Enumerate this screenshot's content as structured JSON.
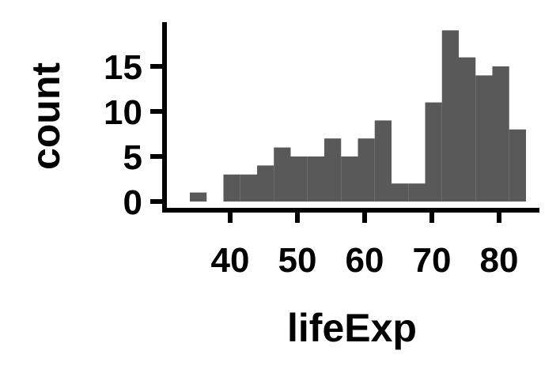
{
  "chart_data": {
    "type": "bar",
    "title": "",
    "xlabel": "lifeExp",
    "ylabel": "count",
    "bins": [
      {
        "x0": 34,
        "x1": 36.5,
        "count": 1
      },
      {
        "x0": 36.5,
        "x1": 39,
        "count": 0
      },
      {
        "x0": 39,
        "x1": 41.5,
        "count": 3
      },
      {
        "x0": 41.5,
        "x1": 44,
        "count": 3
      },
      {
        "x0": 44,
        "x1": 46.5,
        "count": 4
      },
      {
        "x0": 46.5,
        "x1": 49,
        "count": 6
      },
      {
        "x0": 49,
        "x1": 51.5,
        "count": 5
      },
      {
        "x0": 51.5,
        "x1": 54,
        "count": 5
      },
      {
        "x0": 54,
        "x1": 56.5,
        "count": 7
      },
      {
        "x0": 56.5,
        "x1": 59,
        "count": 5
      },
      {
        "x0": 59,
        "x1": 61.5,
        "count": 7
      },
      {
        "x0": 61.5,
        "x1": 64,
        "count": 9
      },
      {
        "x0": 64,
        "x1": 66.5,
        "count": 2
      },
      {
        "x0": 66.5,
        "x1": 69,
        "count": 2
      },
      {
        "x0": 69,
        "x1": 71.5,
        "count": 11
      },
      {
        "x0": 71.5,
        "x1": 74,
        "count": 19
      },
      {
        "x0": 74,
        "x1": 76.5,
        "count": 16
      },
      {
        "x0": 76.5,
        "x1": 79,
        "count": 14
      },
      {
        "x0": 79,
        "x1": 81.5,
        "count": 15
      },
      {
        "x0": 81.5,
        "x1": 84,
        "count": 8
      }
    ],
    "xticks": [
      40,
      50,
      60,
      70,
      80
    ],
    "yticks": [
      0,
      5,
      10,
      15
    ],
    "xlim": [
      30.4,
      87.4
    ],
    "ylim": [
      0,
      20
    ],
    "grid": false,
    "bar_color": "#595959",
    "axis_color": "#000000"
  }
}
